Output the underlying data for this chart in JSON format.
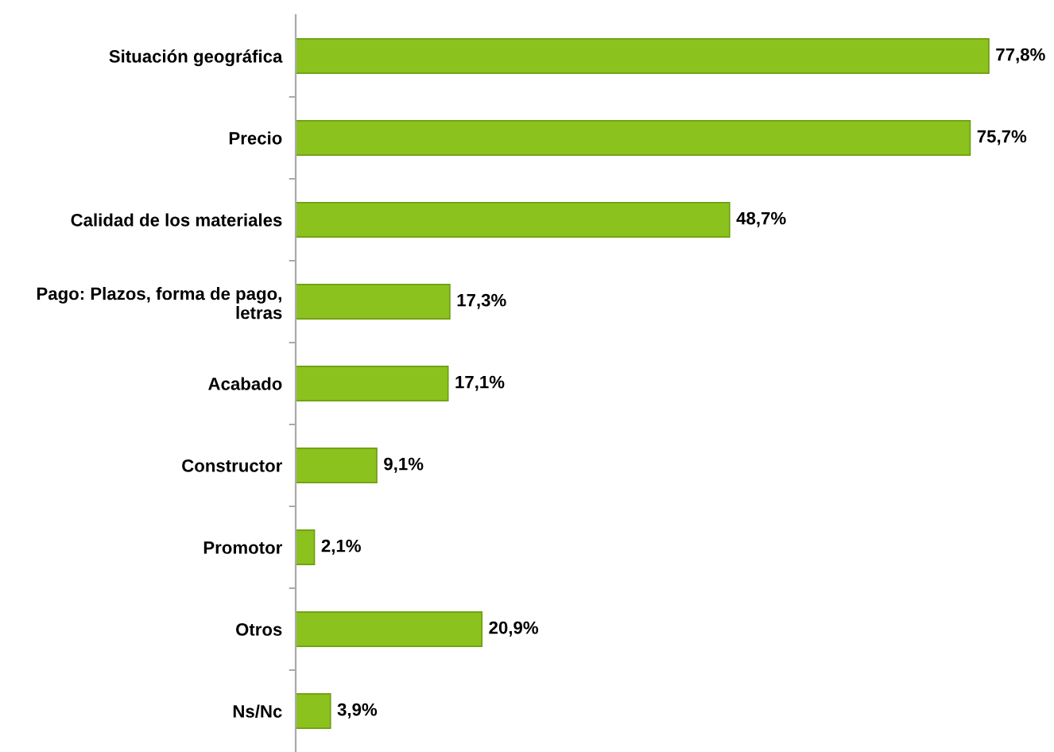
{
  "chart_data": {
    "type": "bar",
    "orientation": "horizontal",
    "categories": [
      "Situación geográfica",
      "Precio",
      "Calidad de los materiales",
      "Pago: Plazos, forma de pago, letras",
      "Acabado",
      "Constructor",
      "Promotor",
      "Otros",
      "Ns/Nc"
    ],
    "values": [
      77.8,
      75.7,
      48.7,
      17.3,
      17.1,
      9.1,
      2.1,
      20.9,
      3.9
    ],
    "value_labels": [
      "77,8%",
      "75,7%",
      "48,7%",
      "17,3%",
      "17,1%",
      "9,1%",
      "2,1%",
      "20,9%",
      "3,9%"
    ],
    "color": "#8cc21e",
    "grid": false,
    "legend": false
  }
}
